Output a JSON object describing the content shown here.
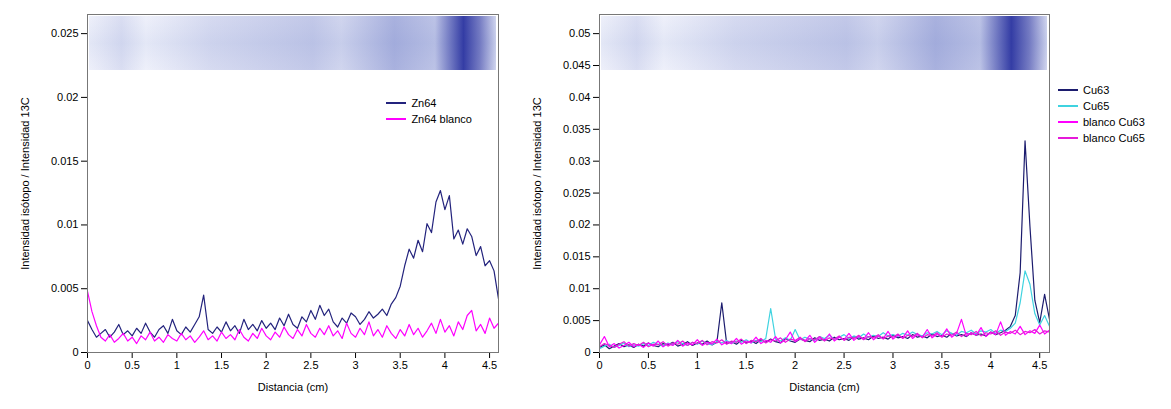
{
  "chart_data": [
    {
      "type": "line",
      "x_label": "Distancia (cm)",
      "y_label": "Intensidad isótopo / Intensidad 13C",
      "xlim": [
        0,
        4.6
      ],
      "ylim": [
        0,
        0.0265
      ],
      "xticks": [
        0,
        0.5,
        1,
        1.5,
        2,
        2.5,
        3,
        3.5,
        4,
        4.5
      ],
      "yticks": [
        0,
        0.005,
        0.01,
        0.015,
        0.02,
        0.025
      ],
      "grid": false,
      "legend": "upper right",
      "x": [
        0,
        0.05,
        0.1,
        0.15,
        0.2,
        0.25,
        0.3,
        0.35,
        0.4,
        0.45,
        0.5,
        0.55,
        0.6,
        0.65,
        0.7,
        0.75,
        0.8,
        0.85,
        0.9,
        0.95,
        1,
        1.05,
        1.1,
        1.15,
        1.2,
        1.25,
        1.3,
        1.35,
        1.4,
        1.45,
        1.5,
        1.55,
        1.6,
        1.65,
        1.7,
        1.75,
        1.8,
        1.85,
        1.9,
        1.95,
        2,
        2.05,
        2.1,
        2.15,
        2.2,
        2.25,
        2.3,
        2.35,
        2.4,
        2.45,
        2.5,
        2.55,
        2.6,
        2.65,
        2.7,
        2.75,
        2.8,
        2.85,
        2.9,
        2.95,
        3,
        3.05,
        3.1,
        3.15,
        3.2,
        3.25,
        3.3,
        3.35,
        3.4,
        3.45,
        3.5,
        3.55,
        3.6,
        3.65,
        3.7,
        3.75,
        3.8,
        3.85,
        3.9,
        3.95,
        4,
        4.05,
        4.1,
        4.15,
        4.2,
        4.25,
        4.3,
        4.35,
        4.4,
        4.45,
        4.5,
        4.55,
        4.6
      ],
      "series": [
        {
          "name": "Zn64",
          "color": "#23237d",
          "values": [
            0.0025,
            0.0018,
            0.0012,
            0.0015,
            0.0018,
            0.0012,
            0.0016,
            0.0022,
            0.0014,
            0.0017,
            0.0013,
            0.0019,
            0.0015,
            0.0023,
            0.0016,
            0.0012,
            0.0018,
            0.0021,
            0.0015,
            0.0026,
            0.0017,
            0.0014,
            0.002,
            0.0016,
            0.0022,
            0.0028,
            0.0045,
            0.0018,
            0.0015,
            0.002,
            0.0016,
            0.0024,
            0.0017,
            0.0021,
            0.0015,
            0.0026,
            0.0018,
            0.0022,
            0.0017,
            0.0025,
            0.0019,
            0.0023,
            0.0018,
            0.0027,
            0.0021,
            0.003,
            0.0022,
            0.0019,
            0.0028,
            0.0024,
            0.0033,
            0.0026,
            0.0037,
            0.0029,
            0.0034,
            0.0024,
            0.002,
            0.0027,
            0.0023,
            0.0031,
            0.0028,
            0.0022,
            0.0026,
            0.0032,
            0.0027,
            0.003,
            0.0034,
            0.0029,
            0.0038,
            0.0043,
            0.0052,
            0.0068,
            0.0081,
            0.0074,
            0.0088,
            0.0079,
            0.0101,
            0.0094,
            0.0118,
            0.0127,
            0.0112,
            0.0123,
            0.0089,
            0.0096,
            0.0085,
            0.0097,
            0.0091,
            0.0076,
            0.0083,
            0.0068,
            0.0072,
            0.0064,
            0.0042
          ]
        },
        {
          "name": "Zn64 blanco",
          "color": "#ff00ff",
          "values": [
            0.0048,
            0.0032,
            0.0021,
            0.0012,
            0.0009,
            0.0014,
            0.0008,
            0.0011,
            0.0015,
            0.0009,
            0.0012,
            0.0007,
            0.0013,
            0.001,
            0.0016,
            0.0009,
            0.0012,
            0.0008,
            0.0014,
            0.0011,
            0.0009,
            0.0015,
            0.001,
            0.0013,
            0.0008,
            0.0012,
            0.0017,
            0.001,
            0.0013,
            0.0009,
            0.0016,
            0.0011,
            0.0014,
            0.001,
            0.0018,
            0.0012,
            0.0009,
            0.0015,
            0.0011,
            0.0019,
            0.0013,
            0.001,
            0.0016,
            0.0012,
            0.002,
            0.0014,
            0.0011,
            0.0018,
            0.0013,
            0.0022,
            0.0015,
            0.0012,
            0.0019,
            0.0014,
            0.0021,
            0.0013,
            0.0017,
            0.0011,
            0.0023,
            0.0015,
            0.0012,
            0.0019,
            0.0014,
            0.0024,
            0.0013,
            0.0018,
            0.0012,
            0.0021,
            0.0015,
            0.0011,
            0.0018,
            0.0013,
            0.0022,
            0.0014,
            0.0019,
            0.0012,
            0.0017,
            0.0023,
            0.0015,
            0.0026,
            0.0016,
            0.0021,
            0.0013,
            0.0024,
            0.0018,
            0.0029,
            0.0033,
            0.0017,
            0.0022,
            0.0015,
            0.0027,
            0.0019,
            0.0023
          ]
        }
      ]
    },
    {
      "type": "line",
      "x_label": "Distancia (cm)",
      "y_label": "Intensidad isótopo / Intensidad 13C",
      "xlim": [
        0,
        4.6
      ],
      "ylim": [
        0,
        0.053
      ],
      "xticks": [
        0,
        0.5,
        1,
        1.5,
        2,
        2.5,
        3,
        3.5,
        4,
        4.5
      ],
      "yticks": [
        0,
        0.005,
        0.01,
        0.015,
        0.02,
        0.025,
        0.03,
        0.035,
        0.04,
        0.045,
        0.05
      ],
      "grid": false,
      "legend": "right",
      "x": [
        0,
        0.05,
        0.1,
        0.15,
        0.2,
        0.25,
        0.3,
        0.35,
        0.4,
        0.45,
        0.5,
        0.55,
        0.6,
        0.65,
        0.7,
        0.75,
        0.8,
        0.85,
        0.9,
        0.95,
        1,
        1.05,
        1.1,
        1.15,
        1.2,
        1.25,
        1.3,
        1.35,
        1.4,
        1.45,
        1.5,
        1.55,
        1.6,
        1.65,
        1.7,
        1.75,
        1.8,
        1.85,
        1.9,
        1.95,
        2,
        2.05,
        2.1,
        2.15,
        2.2,
        2.25,
        2.3,
        2.35,
        2.4,
        2.45,
        2.5,
        2.55,
        2.6,
        2.65,
        2.7,
        2.75,
        2.8,
        2.85,
        2.9,
        2.95,
        3,
        3.05,
        3.1,
        3.15,
        3.2,
        3.25,
        3.3,
        3.35,
        3.4,
        3.45,
        3.5,
        3.55,
        3.6,
        3.65,
        3.7,
        3.75,
        3.8,
        3.85,
        3.9,
        3.95,
        4,
        4.05,
        4.1,
        4.15,
        4.2,
        4.25,
        4.3,
        4.35,
        4.4,
        4.45,
        4.5,
        4.55,
        4.6
      ],
      "series": [
        {
          "name": "Cu63",
          "color": "#1c1c6e",
          "values": [
            0.0008,
            0.0012,
            0.0006,
            0.001,
            0.0014,
            0.0009,
            0.0012,
            0.0008,
            0.0013,
            0.001,
            0.0015,
            0.0011,
            0.0009,
            0.0014,
            0.0012,
            0.0016,
            0.001,
            0.0013,
            0.0017,
            0.0011,
            0.0015,
            0.0013,
            0.0018,
            0.0012,
            0.0016,
            0.0078,
            0.0014,
            0.0017,
            0.0013,
            0.0019,
            0.0015,
            0.0018,
            0.0014,
            0.002,
            0.0016,
            0.0021,
            0.0017,
            0.0015,
            0.0022,
            0.0018,
            0.0016,
            0.0021,
            0.0019,
            0.0017,
            0.0023,
            0.0019,
            0.0021,
            0.0018,
            0.0024,
            0.002,
            0.0022,
            0.0019,
            0.0025,
            0.0021,
            0.0023,
            0.002,
            0.0026,
            0.0022,
            0.0024,
            0.0021,
            0.0027,
            0.0023,
            0.0025,
            0.0022,
            0.0028,
            0.0024,
            0.0026,
            0.0023,
            0.0029,
            0.0025,
            0.0027,
            0.0024,
            0.003,
            0.0026,
            0.0028,
            0.0025,
            0.0031,
            0.0027,
            0.0029,
            0.0026,
            0.0032,
            0.0028,
            0.0031,
            0.0035,
            0.0041,
            0.0058,
            0.0125,
            0.0332,
            0.0198,
            0.0082,
            0.0047,
            0.0091,
            0.0052
          ]
        },
        {
          "name": "Cu65",
          "color": "#3fd3e0",
          "values": [
            0.0006,
            0.001,
            0.0013,
            0.0008,
            0.0011,
            0.0015,
            0.0009,
            0.0012,
            0.001,
            0.0014,
            0.0011,
            0.0016,
            0.0013,
            0.001,
            0.0015,
            0.0012,
            0.0017,
            0.0014,
            0.0011,
            0.0016,
            0.0013,
            0.0018,
            0.0014,
            0.0012,
            0.0017,
            0.0015,
            0.0019,
            0.0014,
            0.0018,
            0.0016,
            0.002,
            0.0015,
            0.0019,
            0.0017,
            0.0022,
            0.0069,
            0.0021,
            0.0018,
            0.0023,
            0.0019,
            0.0036,
            0.002,
            0.0024,
            0.0021,
            0.0019,
            0.0025,
            0.0022,
            0.0027,
            0.0021,
            0.0024,
            0.0028,
            0.0022,
            0.0026,
            0.0023,
            0.0029,
            0.0024,
            0.0027,
            0.0025,
            0.0031,
            0.0026,
            0.0028,
            0.0025,
            0.003,
            0.0027,
            0.0032,
            0.0028,
            0.0026,
            0.0031,
            0.0029,
            0.0033,
            0.0028,
            0.0034,
            0.003,
            0.0027,
            0.0033,
            0.0031,
            0.0035,
            0.0029,
            0.0034,
            0.0032,
            0.0036,
            0.003,
            0.0035,
            0.0033,
            0.0038,
            0.0046,
            0.0078,
            0.0128,
            0.0107,
            0.0061,
            0.0043,
            0.0058,
            0.0041
          ]
        },
        {
          "name": "blanco Cu63",
          "color": "#ff00ff",
          "values": [
            0.0012,
            0.0025,
            0.0009,
            0.0014,
            0.0007,
            0.0011,
            0.0016,
            0.0009,
            0.0013,
            0.0008,
            0.0015,
            0.001,
            0.0018,
            0.0009,
            0.0014,
            0.0011,
            0.0019,
            0.001,
            0.0015,
            0.0012,
            0.002,
            0.0011,
            0.0016,
            0.0013,
            0.0021,
            0.0012,
            0.0017,
            0.0014,
            0.0022,
            0.0013,
            0.0018,
            0.0015,
            0.0024,
            0.0014,
            0.0019,
            0.0016,
            0.0025,
            0.0015,
            0.002,
            0.0032,
            0.0017,
            0.0022,
            0.0018,
            0.0027,
            0.0016,
            0.0023,
            0.0019,
            0.0029,
            0.0018,
            0.0024,
            0.002,
            0.003,
            0.0019,
            0.0025,
            0.0021,
            0.0031,
            0.002,
            0.0026,
            0.0022,
            0.0033,
            0.0021,
            0.0027,
            0.0023,
            0.0034,
            0.0022,
            0.0028,
            0.0024,
            0.0036,
            0.0023,
            0.0029,
            0.0025,
            0.0037,
            0.0024,
            0.003,
            0.0052,
            0.0026,
            0.0031,
            0.0027,
            0.0039,
            0.0025,
            0.0032,
            0.0028,
            0.0048,
            0.0027,
            0.0033,
            0.0029,
            0.0041,
            0.0028,
            0.0034,
            0.003,
            0.0043,
            0.0029,
            0.0035
          ]
        },
        {
          "name": "blanco Cu65",
          "color": "#e619d9",
          "values": [
            0.0009,
            0.0014,
            0.0011,
            0.0008,
            0.0013,
            0.0017,
            0.001,
            0.0014,
            0.0011,
            0.0016,
            0.0009,
            0.0013,
            0.0012,
            0.0017,
            0.001,
            0.0015,
            0.0013,
            0.0018,
            0.0011,
            0.0016,
            0.0014,
            0.0019,
            0.0012,
            0.0017,
            0.0015,
            0.002,
            0.0013,
            0.0018,
            0.0016,
            0.0021,
            0.0014,
            0.0019,
            0.0017,
            0.0022,
            0.0015,
            0.002,
            0.0018,
            0.0023,
            0.0016,
            0.0021,
            0.0019,
            0.0024,
            0.0017,
            0.0022,
            0.002,
            0.0025,
            0.0018,
            0.0023,
            0.0021,
            0.0026,
            0.0019,
            0.0024,
            0.0022,
            0.0027,
            0.002,
            0.0025,
            0.0023,
            0.0028,
            0.0021,
            0.0026,
            0.0024,
            0.0029,
            0.0022,
            0.0027,
            0.0025,
            0.003,
            0.0023,
            0.0028,
            0.0026,
            0.0031,
            0.0024,
            0.0029,
            0.0027,
            0.0032,
            0.0025,
            0.003,
            0.0028,
            0.0033,
            0.0026,
            0.0031,
            0.0029,
            0.0034,
            0.0027,
            0.0032,
            0.003,
            0.0035,
            0.0028,
            0.0033,
            0.0031,
            0.0036,
            0.0029,
            0.0034,
            0.0032
          ]
        }
      ]
    }
  ]
}
